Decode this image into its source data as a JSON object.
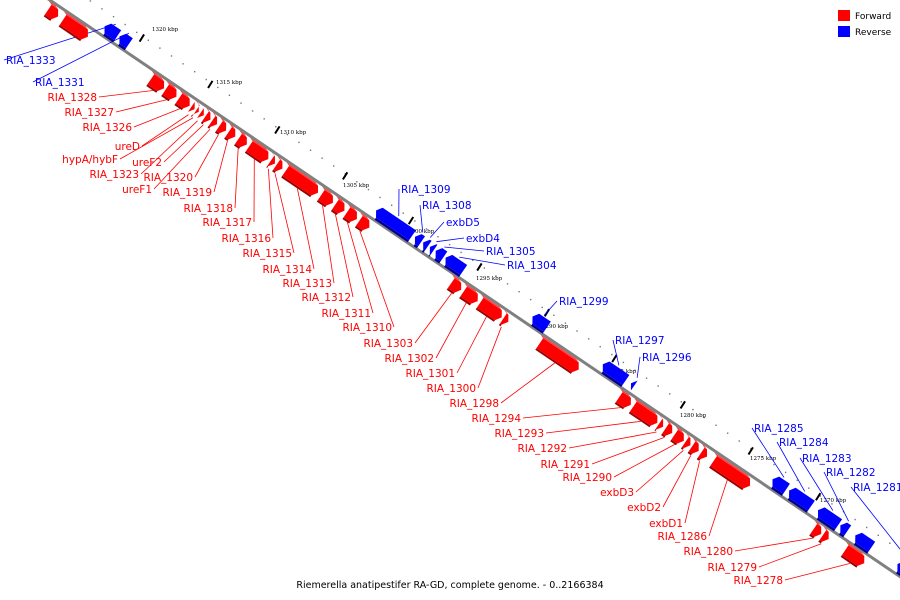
{
  "colors": {
    "forward": "#ff0000",
    "reverse": "#0000ff",
    "backbone": "#808080"
  },
  "legend": {
    "forward_label": "Forward",
    "reverse_label": "Reverse"
  },
  "footer": "Riemerella anatipestifer RA-GD, complete genome. - 0..2166384",
  "ticks": [
    "1320 kbp",
    "1315 kbp",
    "1310 kbp",
    "1305 kbp",
    "1300 kbp",
    "1295 kbp",
    "1290 kbp",
    "1285 kbp",
    "1280 kbp",
    "1275 kbp",
    "1270 kbp"
  ],
  "genes_forward": [
    "RIA_1328",
    "RIA_1327",
    "RIA_1326",
    "ureD",
    "hypA/hybF",
    "RIA_1323",
    "ureF2",
    "ureF1",
    "RIA_1320",
    "RIA_1319",
    "RIA_1318",
    "RIA_1317",
    "RIA_1316",
    "RIA_1315",
    "RIA_1314",
    "RIA_1313",
    "RIA_1312",
    "RIA_1311",
    "RIA_1310",
    "RIA_1303",
    "RIA_1302",
    "RIA_1301",
    "RIA_1300",
    "RIA_1298",
    "RIA_1294",
    "RIA_1293",
    "RIA_1292",
    "RIA_1291",
    "RIA_1290",
    "exbD3",
    "exbD2",
    "exbD1",
    "RIA_1286",
    "RIA_1280",
    "RIA_1279",
    "RIA_1278"
  ],
  "genes_reverse": [
    "RIA_1333",
    "RIA_1331",
    "RIA_1309",
    "RIA_1308",
    "exbD5",
    "exbD4",
    "RIA_1305",
    "RIA_1304",
    "RIA_1299",
    "RIA_1297",
    "RIA_1296",
    "RIA_1285",
    "RIA_1284",
    "RIA_1283",
    "RIA_1282",
    "RIA_1281"
  ]
}
